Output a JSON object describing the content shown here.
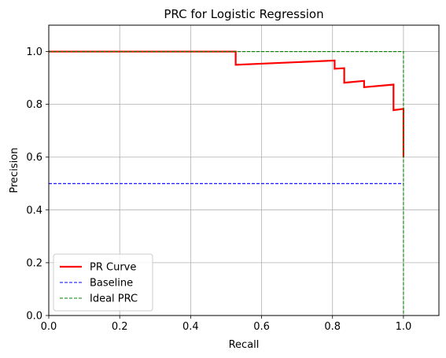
{
  "chart_data": {
    "type": "line",
    "title": "PRC for Logistic Regression",
    "xlabel": "Recall",
    "ylabel": "Precision",
    "xlim": [
      0.0,
      1.1
    ],
    "ylim": [
      0.0,
      1.1
    ],
    "xticks": [
      "0.0",
      "0.2",
      "0.4",
      "0.6",
      "0.8",
      "1.0"
    ],
    "yticks": [
      "0.0",
      "0.2",
      "0.4",
      "0.6",
      "0.8",
      "1.0"
    ],
    "grid": true,
    "legend_position": "lower-left",
    "series": [
      {
        "name": "PR Curve",
        "color": "#ff0000",
        "style": "solid",
        "points": [
          [
            0.0,
            1.0
          ],
          [
            0.527,
            1.0
          ],
          [
            0.527,
            0.95
          ],
          [
            0.806,
            0.966
          ],
          [
            0.806,
            0.935
          ],
          [
            0.833,
            0.937
          ],
          [
            0.833,
            0.882
          ],
          [
            0.889,
            0.889
          ],
          [
            0.889,
            0.865
          ],
          [
            0.972,
            0.875
          ],
          [
            0.972,
            0.778
          ],
          [
            1.0,
            0.783
          ],
          [
            1.0,
            0.6
          ]
        ]
      },
      {
        "name": "Baseline",
        "color": "#0000ff",
        "style": "dashed",
        "points": [
          [
            0.0,
            0.5
          ],
          [
            1.0,
            0.5
          ]
        ]
      },
      {
        "name": "Ideal PRC",
        "color": "#008000",
        "style": "dashed",
        "points": [
          [
            0.0,
            1.0
          ],
          [
            1.0,
            1.0
          ],
          [
            1.0,
            0.0
          ]
        ]
      }
    ]
  }
}
